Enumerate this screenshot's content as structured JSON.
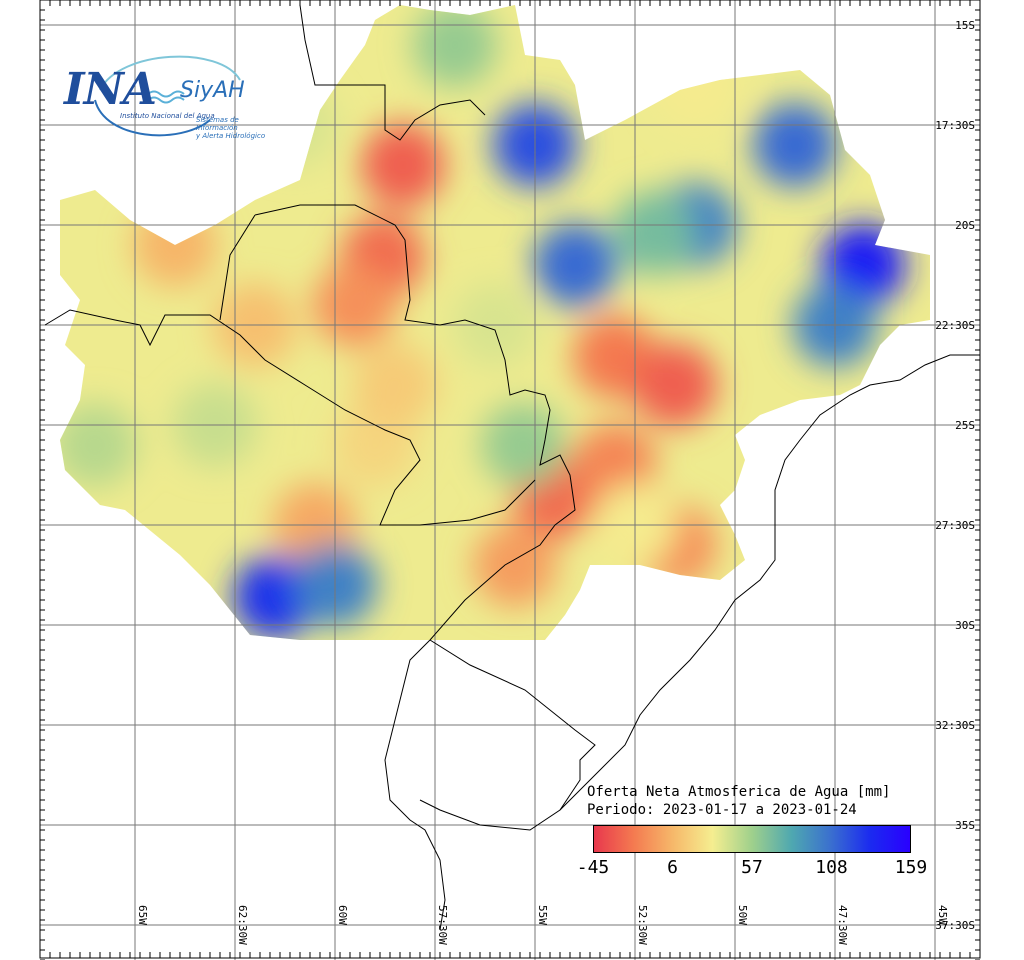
{
  "logo": {
    "ina": "INA",
    "siyah": "SiyAH",
    "institute": "Instituto Nacional del Agua",
    "system_line1": "Sistemas de Información",
    "system_line2": "y Alerta Hidrológico"
  },
  "legend": {
    "title_line1": "Oferta Neta Atmosferica de Agua [mm]",
    "title_line2": "Periodo: 2023-01-17 a 2023-01-24",
    "ticks": [
      "-45",
      "6",
      "57",
      "108",
      "159"
    ],
    "tick_values": [
      -45,
      6,
      57,
      108,
      159
    ],
    "colors": [
      "#e8384d",
      "#f47a50",
      "#f6b86a",
      "#f5ee90",
      "#9fd08c",
      "#4fa8b0",
      "#3a6fcf",
      "#1b2af0",
      "#2a00ff"
    ]
  },
  "grid": {
    "lat_labels": [
      "15S",
      "17:30S",
      "20S",
      "22:30S",
      "25S",
      "27:30S",
      "30S",
      "32:30S",
      "35S",
      "37:30S"
    ],
    "lat_values": [
      -15,
      -17.5,
      -20,
      -22.5,
      -25,
      -27.5,
      -30,
      -32.5,
      -35,
      -37.5
    ],
    "lon_labels": [
      "65W",
      "62:30W",
      "60W",
      "57:30W",
      "55W",
      "52:30W",
      "50W",
      "47:30W",
      "45W"
    ],
    "lon_values": [
      -65,
      -62.5,
      -60,
      -57.5,
      -55,
      -52.5,
      -50,
      -47.5,
      -45
    ]
  },
  "map": {
    "field_patches": [
      {
        "value": -30,
        "lon": -58.3,
        "lat": -18.5
      },
      {
        "value": -25,
        "lon": -58.8,
        "lat": -20.8
      },
      {
        "value": -20,
        "lon": -53,
        "lat": -23.3
      },
      {
        "value": -30,
        "lon": -51.5,
        "lat": -24
      },
      {
        "value": -25,
        "lon": -54.5,
        "lat": -26.8
      },
      {
        "value": -15,
        "lon": -53,
        "lat": -26
      },
      {
        "value": -10,
        "lon": -51.5,
        "lat": -28
      },
      {
        "value": -5,
        "lon": -55.5,
        "lat": -28.5
      },
      {
        "value": 0,
        "lon": -60.5,
        "lat": -27.5
      },
      {
        "value": 20,
        "lon": -59,
        "lat": -25.5
      },
      {
        "value": 5,
        "lon": -64,
        "lat": -20.5
      },
      {
        "value": 40,
        "lon": -61,
        "lat": -17.5
      },
      {
        "value": 60,
        "lon": -57,
        "lat": -15.5
      },
      {
        "value": 120,
        "lon": -55,
        "lat": -18
      },
      {
        "value": 110,
        "lon": -54,
        "lat": -21
      },
      {
        "value": 100,
        "lon": -51,
        "lat": -20
      },
      {
        "value": 110,
        "lon": -48.5,
        "lat": -18
      },
      {
        "value": 140,
        "lon": -46.8,
        "lat": -21
      },
      {
        "value": 100,
        "lon": -47.5,
        "lat": -22.5
      },
      {
        "value": 70,
        "lon": -52,
        "lat": -20.2
      },
      {
        "value": 30,
        "lon": -51,
        "lat": -16.5
      },
      {
        "value": 45,
        "lon": -63,
        "lat": -25
      },
      {
        "value": 50,
        "lon": -66,
        "lat": -25.5
      },
      {
        "value": 130,
        "lon": -61.5,
        "lat": -29.3
      },
      {
        "value": 100,
        "lon": -60,
        "lat": -29
      },
      {
        "value": 15,
        "lon": -58.5,
        "lat": -24
      },
      {
        "value": 60,
        "lon": -55.3,
        "lat": -25.5
      },
      {
        "value": 30,
        "lon": -52.5,
        "lat": -27.5
      },
      {
        "value": 40,
        "lon": -56,
        "lat": -22.5
      },
      {
        "value": -10,
        "lon": -59.5,
        "lat": -22
      },
      {
        "value": 10,
        "lon": -62,
        "lat": -22.5
      }
    ]
  }
}
